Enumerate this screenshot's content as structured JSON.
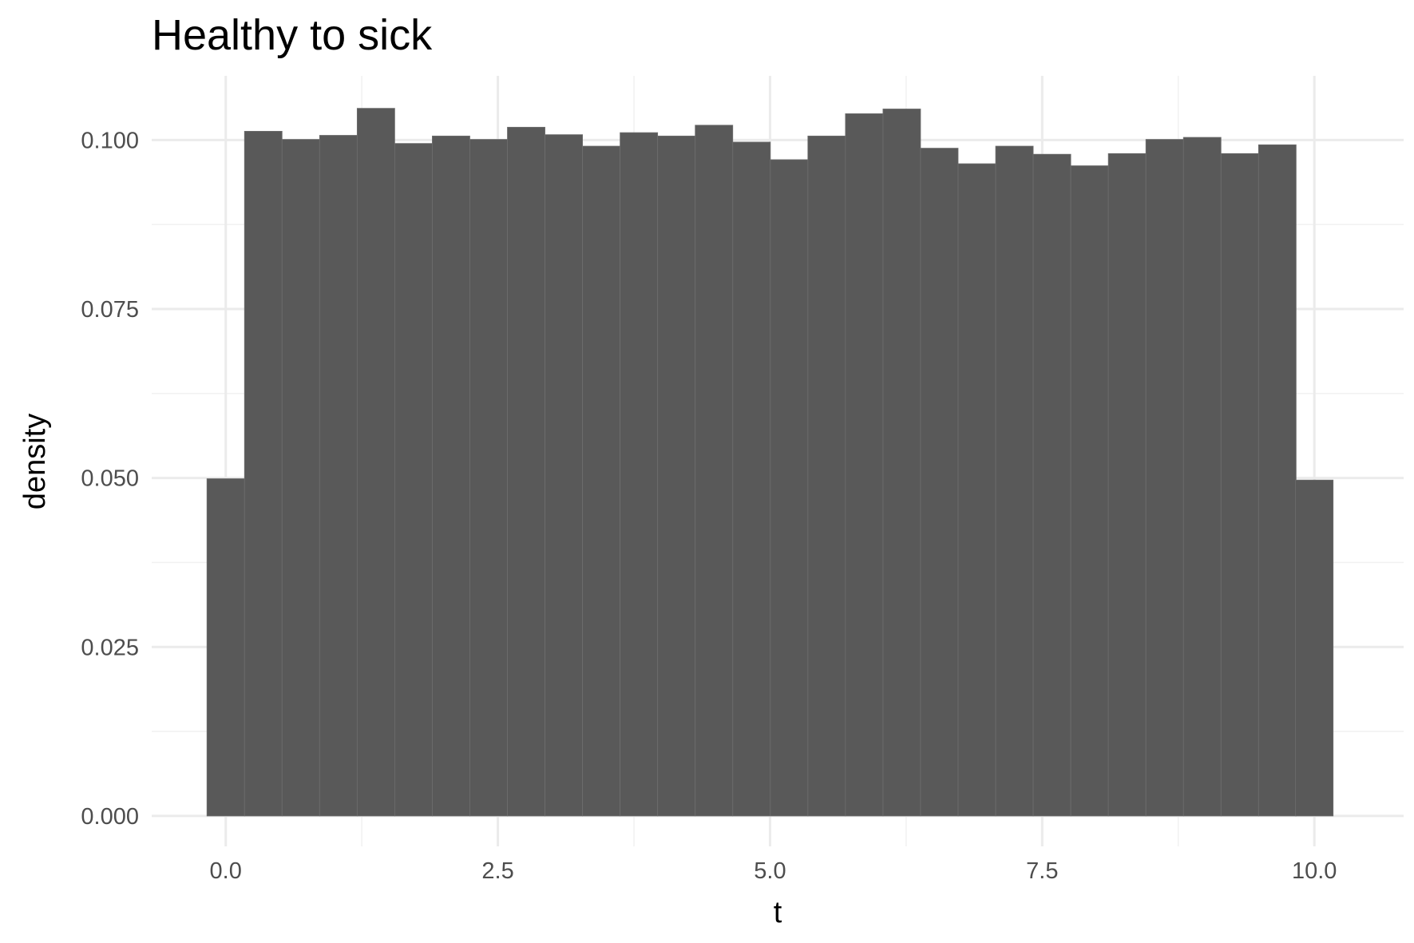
{
  "chart_data": {
    "type": "bar",
    "title": "Healthy to sick",
    "xlabel": "t",
    "ylabel": "density",
    "xlim": [
      -0.68,
      10.82
    ],
    "ylim": [
      -0.0045,
      0.1095
    ],
    "x_ticks": [
      0,
      2.5,
      5,
      7.5,
      10
    ],
    "x_tick_labels": [
      "0.0",
      "2.5",
      "5.0",
      "7.5",
      "10.0"
    ],
    "y_ticks": [
      0,
      0.025,
      0.05,
      0.075,
      0.1
    ],
    "y_tick_labels": [
      "0.000",
      "0.025",
      "0.050",
      "0.075",
      "0.100"
    ],
    "grid": true,
    "bar_color": "#595959",
    "bin_width": 0.345,
    "bin_centers": [
      0,
      0.345,
      0.69,
      1.035,
      1.38,
      1.725,
      2.07,
      2.415,
      2.76,
      3.105,
      3.45,
      3.795,
      4.14,
      4.485,
      4.83,
      5.175,
      5.52,
      5.865,
      6.21,
      6.555,
      6.9,
      7.245,
      7.59,
      7.935,
      8.28,
      8.625,
      8.97,
      9.315,
      9.66,
      10.0
    ],
    "values": [
      0.0499,
      0.1013,
      0.1001,
      0.1007,
      0.1047,
      0.0995,
      0.1006,
      0.1001,
      0.1019,
      0.1008,
      0.0991,
      0.1011,
      0.1006,
      0.1022,
      0.0997,
      0.0971,
      0.1006,
      0.1039,
      0.1046,
      0.0988,
      0.0965,
      0.0991,
      0.0979,
      0.0962,
      0.098,
      0.1001,
      0.1004,
      0.098,
      0.0993,
      0.0497
    ]
  }
}
